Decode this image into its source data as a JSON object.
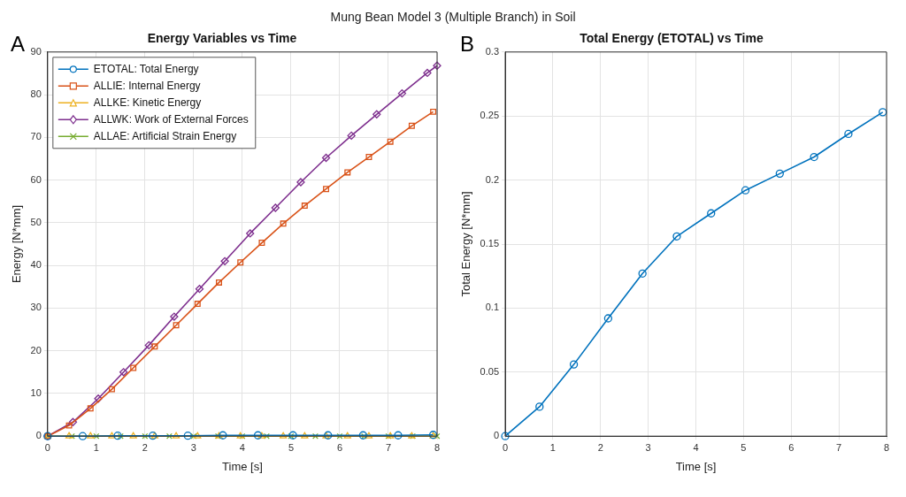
{
  "chart_data": [
    {
      "type": "line",
      "title": "Energy Variables vs Time",
      "xlabel": "Time [s]",
      "ylabel": "Energy [N*mm]",
      "annotations": [
        "Mung Bean Model 3 (Multiple Branch) in Soil",
        "A"
      ],
      "xlim": [
        0,
        8
      ],
      "xticks": [
        0,
        1,
        2,
        3,
        4,
        5,
        6,
        7,
        8
      ],
      "ylim": [
        0,
        90
      ],
      "yticks": [
        0,
        10,
        20,
        30,
        40,
        50,
        60,
        70,
        80,
        90
      ],
      "grid": true,
      "legend": "top left",
      "line_style": "solid",
      "series": [
        {
          "name": "ETOTAL: Total Energy",
          "color": "#0072bd",
          "marker": "circle",
          "x": [
            0,
            0.72,
            1.44,
            2.16,
            2.88,
            3.6,
            4.32,
            5.04,
            5.76,
            6.48,
            7.2,
            7.92
          ],
          "values": [
            0,
            0,
            0.1,
            0.1,
            0.1,
            0.2,
            0.2,
            0.2,
            0.2,
            0.2,
            0.2,
            0.3
          ]
        },
        {
          "name": "ALLIE: Internal Energy",
          "color": "#d95319",
          "marker": "square",
          "x": [
            0,
            0.44,
            0.88,
            1.32,
            1.76,
            2.2,
            2.64,
            3.08,
            3.52,
            3.96,
            4.4,
            4.84,
            5.28,
            5.72,
            6.16,
            6.6,
            7.04,
            7.48,
            7.92
          ],
          "values": [
            0,
            2.5,
            6.5,
            11,
            16,
            21,
            26,
            31,
            36,
            40.7,
            45.3,
            49.8,
            54,
            57.9,
            61.8,
            65.4,
            69,
            72.7,
            76
          ]
        },
        {
          "name": "ALLKE: Kinetic Energy",
          "color": "#edb120",
          "marker": "triangle",
          "x": [
            0,
            0.44,
            0.88,
            1.32,
            1.76,
            2.2,
            2.64,
            3.08,
            3.52,
            3.96,
            4.4,
            4.84,
            5.28,
            5.72,
            6.16,
            6.6,
            7.04,
            7.48,
            7.92
          ],
          "values": [
            0,
            0,
            0,
            0,
            0,
            0,
            0,
            0,
            0,
            0,
            0,
            0,
            0,
            0,
            0,
            0,
            0,
            0,
            0
          ]
        },
        {
          "name": "ALLWK: Work of External Forces",
          "color": "#7e2f8e",
          "marker": "diamond",
          "x": [
            0,
            0.52,
            1.04,
            1.56,
            2.08,
            2.6,
            3.12,
            3.64,
            4.16,
            4.68,
            5.2,
            5.72,
            6.24,
            6.76,
            7.28,
            7.8,
            8
          ],
          "values": [
            0,
            3.3,
            8.8,
            15,
            21.3,
            28,
            34.5,
            41,
            47.5,
            53.5,
            59.5,
            65.2,
            70.4,
            75.4,
            80.3,
            85.1,
            86.8
          ]
        },
        {
          "name": "ALLAE: Artificial Strain Energy",
          "color": "#77ac30",
          "marker": "cross",
          "x": [
            0,
            0.5,
            1,
            1.5,
            2,
            2.5,
            3,
            3.5,
            4,
            4.5,
            5,
            5.5,
            6,
            6.5,
            7,
            7.5,
            8
          ],
          "values": [
            0,
            0,
            0,
            0,
            0,
            0,
            0,
            0,
            0,
            0,
            0,
            0,
            0,
            0,
            0,
            0,
            0
          ]
        }
      ]
    },
    {
      "type": "line",
      "title": "Total Energy (ETOTAL) vs Time",
      "xlabel": "Time [s]",
      "ylabel": "Total Energy [N*mm]",
      "annotations": [
        "B"
      ],
      "xlim": [
        0,
        8
      ],
      "xticks": [
        0,
        1,
        2,
        3,
        4,
        5,
        6,
        7,
        8
      ],
      "ylim": [
        0,
        0.3
      ],
      "yticks": [
        0,
        0.05,
        0.1,
        0.15,
        0.2,
        0.25,
        0.3
      ],
      "grid": true,
      "line_style": "solid",
      "series": [
        {
          "color": "#0072bd",
          "marker": "circle",
          "x": [
            0,
            0.72,
            1.44,
            2.16,
            2.88,
            3.6,
            4.32,
            5.04,
            5.76,
            6.48,
            7.2,
            7.92
          ],
          "values": [
            0,
            0.023,
            0.056,
            0.092,
            0.127,
            0.156,
            0.174,
            0.192,
            0.205,
            0.218,
            0.236,
            0.253
          ]
        }
      ]
    }
  ]
}
